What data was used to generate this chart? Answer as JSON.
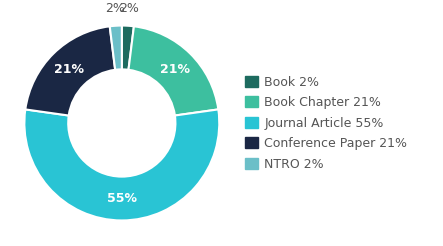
{
  "labels": [
    "Book",
    "Book Chapter",
    "Journal Article",
    "Conference Paper",
    "NTRO"
  ],
  "values": [
    2,
    21,
    55,
    21,
    2
  ],
  "colors": [
    "#1d6b5f",
    "#3dbf9f",
    "#29c4d4",
    "#1a2744",
    "#6bbfc8"
  ],
  "pct_labels": [
    "2%",
    "21%",
    "55%",
    "21%",
    "2%"
  ],
  "show_pct_inside": [
    false,
    true,
    true,
    true,
    false
  ],
  "outside_pct_labels": [
    "2%",
    "2%"
  ],
  "legend_labels": [
    "Book 2%",
    "Book Chapter 21%",
    "Journal Article 55%",
    "Conference Paper 21%",
    "NTRO 2%"
  ],
  "background_color": "#ffffff",
  "wedge_edge_color": "#ffffff",
  "text_color": "#555555",
  "pct_fontsize": 9,
  "legend_fontsize": 9,
  "outside_label_color": "#555555"
}
